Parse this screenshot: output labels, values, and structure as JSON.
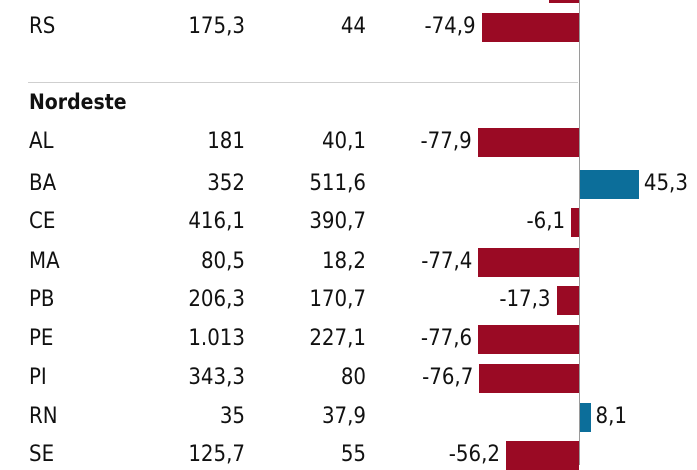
{
  "chart_data": {
    "type": "table",
    "colors": {
      "negative": "#9a0a24",
      "positive": "#0c6e9a"
    },
    "rows": [
      {
        "state": "RS",
        "value_1": "175,3",
        "value_2": "44",
        "change": -74.9,
        "change_label": "-74,9"
      },
      {
        "section": "Nordeste"
      },
      {
        "state": "AL",
        "value_1": "181",
        "value_2": "40,1",
        "change": -77.9,
        "change_label": "-77,9"
      },
      {
        "state": "BA",
        "value_1": "352",
        "value_2": "511,6",
        "change": 45.3,
        "change_label": "45,3"
      },
      {
        "state": "CE",
        "value_1": "416,1",
        "value_2": "390,7",
        "change": -6.1,
        "change_label": "-6,1"
      },
      {
        "state": "MA",
        "value_1": "80,5",
        "value_2": "18,2",
        "change": -77.4,
        "change_label": "-77,4"
      },
      {
        "state": "PB",
        "value_1": "206,3",
        "value_2": "170,7",
        "change": -17.3,
        "change_label": "-17,3"
      },
      {
        "state": "PE",
        "value_1": "1.013",
        "value_2": "227,1",
        "change": -77.6,
        "change_label": "-77,6"
      },
      {
        "state": "PI",
        "value_1": "343,3",
        "value_2": "80",
        "change": -76.7,
        "change_label": "-76,7"
      },
      {
        "state": "RN",
        "value_1": "35",
        "value_2": "37,9",
        "change": 8.1,
        "change_label": "8,1"
      },
      {
        "state": "SE",
        "value_1": "125,7",
        "value_2": "55",
        "change": -56.2,
        "change_label": "-56,2"
      }
    ]
  }
}
